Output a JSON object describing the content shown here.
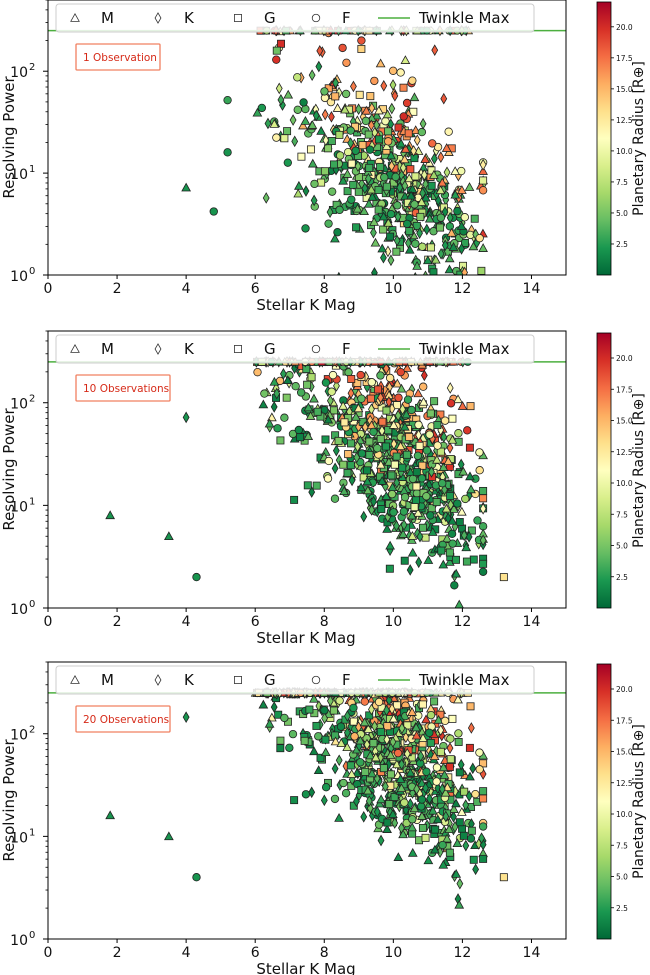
{
  "chart_data": [
    {
      "type": "scatter",
      "annotation": "1 Observation",
      "xlabel": "Stellar K Mag",
      "ylabel": "Resolving Power",
      "xlim": [
        0,
        15
      ],
      "ylim": [
        1,
        500
      ],
      "yscale": "log",
      "x_ticks": [
        "0",
        "2",
        "4",
        "6",
        "8",
        "10",
        "12",
        "14"
      ],
      "y_ticks": [
        {
          "base": "10",
          "exp": "0"
        },
        {
          "base": "10",
          "exp": "1"
        },
        {
          "base": "10",
          "exp": "2"
        }
      ],
      "legend": {
        "placement": "top",
        "entries": [
          "M",
          "K",
          "G",
          "F",
          "Twinkle Max"
        ]
      },
      "twinkle_max": 250,
      "colorbar": {
        "label": "Planetary Radius [R⊕]",
        "range": [
          0,
          22
        ],
        "ticks": [
          "2.5",
          "5.0",
          "7.5",
          "10.0",
          "12.5",
          "15.0",
          "17.5",
          "20.0"
        ]
      },
      "sample_points": [
        {
          "star": "M",
          "kmag": 4.0,
          "rp": 7.2,
          "radius": 2.0
        },
        {
          "star": "F",
          "kmag": 4.8,
          "rp": 4.2,
          "radius": 2.0
        },
        {
          "star": "F",
          "kmag": 5.2,
          "rp": 16.0,
          "radius": 2.0
        },
        {
          "star": "F",
          "kmag": 5.2,
          "rp": 52.0,
          "radius": 3.0
        },
        {
          "star": "F",
          "kmag": 10.3,
          "rp": 36.0,
          "radius": 20.0
        },
        {
          "star": "F",
          "kmag": 12.5,
          "rp": 2.3,
          "radius": 13.0
        }
      ]
    },
    {
      "type": "scatter",
      "annotation": "10 Observations",
      "xlabel": "Stellar K Mag",
      "ylabel": "Resolving Power",
      "xlim": [
        0,
        15
      ],
      "ylim": [
        1,
        500
      ],
      "yscale": "log",
      "x_ticks": [
        "0",
        "2",
        "4",
        "6",
        "8",
        "10",
        "12",
        "14"
      ],
      "y_ticks": [
        {
          "base": "10",
          "exp": "0"
        },
        {
          "base": "10",
          "exp": "1"
        },
        {
          "base": "10",
          "exp": "2"
        }
      ],
      "legend": {
        "placement": "top",
        "entries": [
          "M",
          "K",
          "G",
          "F",
          "Twinkle Max"
        ]
      },
      "twinkle_max": 250,
      "colorbar": {
        "label": "Planetary Radius [R⊕]",
        "range": [
          0,
          22
        ],
        "ticks": [
          "2.5",
          "5.0",
          "7.5",
          "10.0",
          "12.5",
          "15.0",
          "17.5",
          "20.0"
        ]
      },
      "sample_points": [
        {
          "star": "M",
          "kmag": 1.8,
          "rp": 8.0,
          "radius": 2.0
        },
        {
          "star": "M",
          "kmag": 3.5,
          "rp": 5.0,
          "radius": 2.0
        },
        {
          "star": "F",
          "kmag": 4.3,
          "rp": 2.0,
          "radius": 2.0
        },
        {
          "star": "K",
          "kmag": 4.0,
          "rp": 72.0,
          "radius": 2.0
        },
        {
          "star": "F",
          "kmag": 12.5,
          "rp": 22.0,
          "radius": 13.0
        },
        {
          "star": "G",
          "kmag": 13.2,
          "rp": 2.0,
          "radius": 13.0
        }
      ]
    },
    {
      "type": "scatter",
      "annotation": "20 Observations",
      "xlabel": "Stellar K Mag",
      "ylabel": "Resolving Power",
      "xlim": [
        0,
        15
      ],
      "ylim": [
        1,
        500
      ],
      "yscale": "log",
      "x_ticks": [
        "0",
        "2",
        "4",
        "6",
        "8",
        "10",
        "12",
        "14"
      ],
      "y_ticks": [
        {
          "base": "10",
          "exp": "0"
        },
        {
          "base": "10",
          "exp": "1"
        },
        {
          "base": "10",
          "exp": "2"
        }
      ],
      "legend": {
        "placement": "top",
        "entries": [
          "M",
          "K",
          "G",
          "F",
          "Twinkle Max"
        ]
      },
      "twinkle_max": 250,
      "colorbar": {
        "label": "Planetary Radius [R⊕]",
        "range": [
          0,
          22
        ],
        "ticks": [
          "2.5",
          "5.0",
          "7.5",
          "10.0",
          "12.5",
          "15.0",
          "17.5",
          "20.0"
        ]
      },
      "sample_points": [
        {
          "star": "M",
          "kmag": 1.8,
          "rp": 16.0,
          "radius": 2.0
        },
        {
          "star": "M",
          "kmag": 3.5,
          "rp": 10.0,
          "radius": 2.0
        },
        {
          "star": "F",
          "kmag": 4.3,
          "rp": 4.0,
          "radius": 2.0
        },
        {
          "star": "K",
          "kmag": 4.0,
          "rp": 145.0,
          "radius": 2.0
        },
        {
          "star": "F",
          "kmag": 12.5,
          "rp": 45.0,
          "radius": 13.0
        },
        {
          "star": "G",
          "kmag": 13.2,
          "rp": 4.0,
          "radius": 13.0
        }
      ]
    }
  ],
  "colors": {
    "twinkle_line": "#4caf3f",
    "annotation_text": "#d62a18",
    "annotation_border": "#f08060",
    "colormap": [
      "#006837",
      "#1a9850",
      "#66bd63",
      "#a6d96a",
      "#d9ef8b",
      "#ffffbf",
      "#fee08b",
      "#fdae61",
      "#f46d43",
      "#d73027",
      "#a50026"
    ]
  }
}
